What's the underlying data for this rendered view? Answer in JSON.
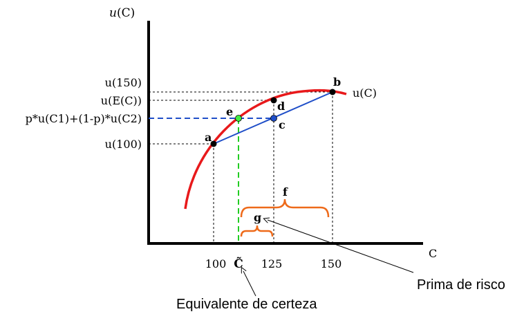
{
  "axes": {
    "y_label_italic": "u",
    "y_label_rest": "(C)",
    "x_label": "C"
  },
  "y_ticks": {
    "u150": "u(150)",
    "uEC": "u(E(C))",
    "p_expr": "p*u(C1)+(1-p)*u(C2)",
    "u100": "u(100)"
  },
  "x_ticks": {
    "t100": "100",
    "ctilde": "C̃",
    "t125": "125",
    "t150": "150"
  },
  "curve_label": "u(C)",
  "points": {
    "a": "a",
    "b": "b",
    "c": "c",
    "d": "d",
    "e": "e"
  },
  "braces": {
    "f": "f",
    "g": "g"
  },
  "annotations": {
    "prima": "Prima de risco",
    "equivalente": "Equivalente de certeza"
  },
  "colors": {
    "curve": "#e8191b",
    "chord": "#1f4ec8",
    "dashed_blue": "#1f4ec8",
    "dashed_green": "#22cc22",
    "brace": "#ee6a1a",
    "point_black": "#000000",
    "point_green": "#44ee44",
    "point_blue": "#1f4ec8"
  }
}
